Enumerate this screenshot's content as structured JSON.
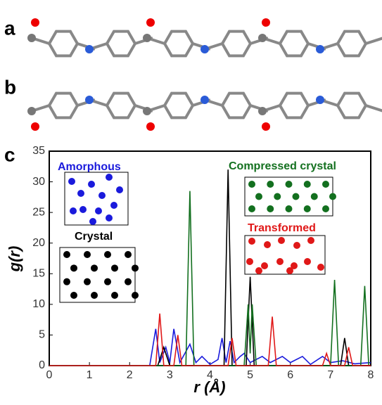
{
  "panels": [
    "a",
    "b",
    "c"
  ],
  "chart_data": {
    "type": "line",
    "x_label": "r (Å)",
    "y_label": "g(r)",
    "xlim": [
      0,
      8
    ],
    "ylim": [
      0,
      35
    ],
    "xticks": [
      0,
      1,
      2,
      3,
      4,
      5,
      6,
      7,
      8
    ],
    "yticks": [
      0,
      5,
      10,
      15,
      20,
      25,
      30,
      35
    ],
    "series": [
      {
        "name": "Amorphous",
        "color": "#1a1adc",
        "x": [
          0,
          2.5,
          2.65,
          2.75,
          2.9,
          3.0,
          3.1,
          3.25,
          3.5,
          3.65,
          3.8,
          4.0,
          4.2,
          4.3,
          4.4,
          4.5,
          4.6,
          4.75,
          4.85,
          5.0,
          5.3,
          5.5,
          5.8,
          6.0,
          6.3,
          6.5,
          6.8,
          7.0,
          7.3,
          7.6,
          8
        ],
        "values": [
          0,
          0,
          6,
          0.5,
          3,
          0.5,
          6,
          0.5,
          3.5,
          0.5,
          1.5,
          0.2,
          1,
          4.5,
          0.5,
          4,
          0.5,
          1.5,
          2,
          0.5,
          1.5,
          0.5,
          1.5,
          0.5,
          1.5,
          0.2,
          1.5,
          0.5,
          0.8,
          0.3,
          0.5
        ]
      },
      {
        "name": "Crystal",
        "color": "#000000",
        "x": [
          0,
          2.7,
          2.85,
          3.0,
          4.35,
          4.45,
          4.55,
          4.9,
          5.0,
          5.1,
          7.25,
          7.35,
          7.45,
          8
        ],
        "values": [
          0,
          0,
          3,
          0,
          0,
          32,
          0,
          0,
          14.5,
          0,
          0,
          4.5,
          0,
          0
        ]
      },
      {
        "name": "Compressed crystal",
        "color": "#13701f",
        "x": [
          0,
          3.4,
          3.5,
          3.6,
          4.85,
          4.95,
          5.0,
          5.05,
          5.15,
          7.0,
          7.1,
          7.2,
          7.75,
          7.85,
          7.95
        ],
        "values": [
          0,
          0,
          28.5,
          0,
          0,
          10,
          2,
          10,
          0,
          0,
          14,
          0,
          0,
          13,
          0
        ]
      },
      {
        "name": "Transformed",
        "color": "#e01818",
        "x": [
          0,
          2.65,
          2.75,
          2.85,
          3.1,
          3.2,
          3.3,
          4.45,
          4.55,
          4.65,
          5.45,
          5.55,
          5.65,
          6.8,
          6.9,
          7.0,
          7.35,
          7.45,
          7.55,
          8
        ],
        "values": [
          0,
          0,
          8.5,
          0,
          0,
          5,
          0,
          0,
          4.5,
          0,
          0,
          8,
          0,
          0,
          2,
          0,
          0,
          3,
          0,
          0
        ]
      }
    ]
  }
}
